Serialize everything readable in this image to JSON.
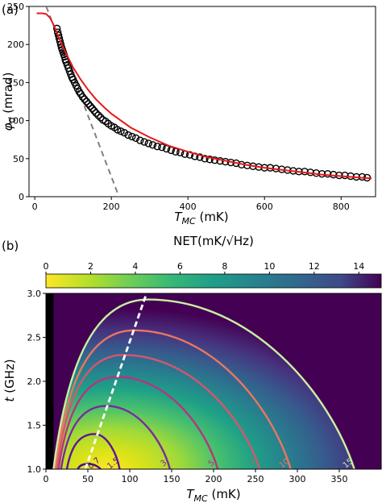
{
  "panel_a_label": "(a)",
  "panel_b_label": "(b)",
  "colors": {
    "data_marker": "#000000",
    "fit_line": "#e41a1c",
    "linear_fit": "#808080",
    "contour_outer": "#c8f0a0",
    "dashed_line": "#ffffff",
    "map_high": "#440154",
    "map_low": "#fde725"
  },
  "chart_data": [
    {
      "type": "scatter",
      "panel": "(a)",
      "xlabel": "T_MC (mK)",
      "xlabel_main": "T",
      "xlabel_sub": "MC",
      "xlabel_unit": " (mK)",
      "ylabel": "φ0 (mrad)",
      "ylabel_main": "φ",
      "ylabel_sub": "0",
      "ylabel_unit": " (mrad)",
      "xlim": [
        -15,
        890
      ],
      "ylim": [
        0,
        250
      ],
      "xticks": [
        0,
        200,
        400,
        600,
        800
      ],
      "yticks": [
        0,
        50,
        100,
        150,
        200,
        250
      ],
      "grid": false,
      "series": [
        {
          "kind": "markers",
          "color": "#000000",
          "x": [
            58,
            60,
            62,
            64,
            66,
            68,
            70,
            72,
            74,
            76,
            78,
            80,
            82,
            85,
            88,
            91,
            94,
            97,
            100,
            104,
            108,
            112,
            116,
            120,
            125,
            130,
            135,
            140,
            145,
            150,
            155,
            160,
            166,
            172,
            178,
            185,
            192,
            200,
            208,
            216,
            225,
            234,
            244,
            254,
            264,
            275,
            286,
            297,
            308,
            320,
            332,
            344,
            356,
            368,
            380,
            392,
            405,
            418,
            431,
            444,
            457,
            470,
            484,
            498,
            512,
            526,
            540,
            555,
            570,
            585,
            600,
            615,
            630,
            645,
            660,
            675,
            690,
            705,
            720,
            735,
            750,
            765,
            780,
            795,
            810,
            825,
            840,
            855,
            868
          ],
          "y": [
            221,
            216,
            212,
            208,
            204,
            200,
            196,
            193,
            190,
            187,
            184,
            180,
            177,
            173,
            169,
            165,
            161,
            157,
            154,
            150,
            146,
            142,
            138,
            135,
            131,
            128,
            125,
            122,
            119,
            116,
            113,
            110,
            107,
            104,
            101,
            99,
            96,
            93,
            91,
            88,
            86,
            84,
            81,
            79,
            77,
            74,
            72,
            70,
            68,
            66,
            65,
            63,
            61,
            59,
            58,
            56,
            55,
            53,
            52,
            50,
            49,
            48,
            47,
            46,
            45,
            44,
            42,
            41,
            40,
            39,
            38,
            38,
            37,
            36,
            35,
            34,
            33,
            33,
            32,
            31,
            30,
            30,
            29,
            28,
            28,
            27,
            26,
            26,
            25
          ]
        },
        {
          "kind": "line",
          "color": "#e41a1c",
          "x": [
            5,
            20,
            30,
            40,
            50,
            60,
            70,
            80,
            90,
            100,
            120,
            140,
            160,
            180,
            200,
            250,
            300,
            350,
            400,
            450,
            500,
            550,
            600,
            650,
            700,
            750,
            800,
            850,
            880
          ],
          "y": [
            241,
            241,
            240,
            235,
            225,
            213,
            201,
            190,
            180,
            170,
            154,
            140,
            128,
            118,
            109,
            91,
            78,
            67,
            59,
            52,
            47,
            42,
            38,
            35,
            32,
            29,
            27,
            25,
            24
          ]
        },
        {
          "kind": "dashed-line",
          "color": "#808080",
          "x": [
            30,
            220
          ],
          "y": [
            250,
            0
          ]
        }
      ]
    },
    {
      "type": "heatmap",
      "panel": "(b)",
      "colorbar_label": "NET(mK/√Hz)",
      "colorbar_ticks": [
        0,
        2,
        4,
        6,
        8,
        10,
        12,
        14
      ],
      "colorbar_range": [
        0,
        15
      ],
      "xlabel": "T_MC (mK)",
      "xlabel_main": "T",
      "xlabel_sub": "MC",
      "xlabel_unit": " (mK)",
      "ylabel": "t (GHz)",
      "ylabel_main": "t",
      "ylabel_unit": " (GHz)",
      "xlim": [
        0,
        400
      ],
      "ylim": [
        1.0,
        3.0
      ],
      "xticks": [
        0,
        50,
        100,
        150,
        200,
        250,
        300,
        350
      ],
      "yticks": [
        1.0,
        1.5,
        2.0,
        2.5,
        3.0
      ],
      "contours": [
        {
          "level": 0.7,
          "label": "0.7",
          "color": "#4b0c8a",
          "t_peak": 1.06,
          "T_left": 38,
          "T_right": 65,
          "T_peak": 50
        },
        {
          "level": 1.5,
          "label": "1.5",
          "color": "#5c1595",
          "t_peak": 1.4,
          "T_left": 25,
          "T_right": 88,
          "T_peak": 58
        },
        {
          "level": 3,
          "label": "3",
          "color": "#7a2a9e",
          "t_peak": 1.72,
          "T_left": 18,
          "T_right": 148,
          "T_peak": 72
        },
        {
          "level": 5,
          "label": "5",
          "color": "#b5357e",
          "t_peak": 2.05,
          "T_left": 15,
          "T_right": 205,
          "T_peak": 85
        },
        {
          "level": 7,
          "label": "7",
          "color": "#d8556e",
          "t_peak": 2.3,
          "T_left": 13,
          "T_right": 255,
          "T_peak": 92
        },
        {
          "level": 10,
          "label": "10",
          "color": "#ec7560",
          "t_peak": 2.58,
          "T_left": 11,
          "T_right": 292,
          "T_peak": 105
        },
        {
          "level": 15,
          "label": "15",
          "color": "#c8f0a0",
          "t_peak": 2.93,
          "T_left": 9,
          "T_right": 368,
          "T_peak": 122
        }
      ],
      "dashed_line": {
        "color": "#ffffff",
        "x": [
          47,
          120
        ],
        "y": [
          1.0,
          3.0
        ]
      },
      "black_strip": {
        "x_max": 9
      }
    }
  ]
}
